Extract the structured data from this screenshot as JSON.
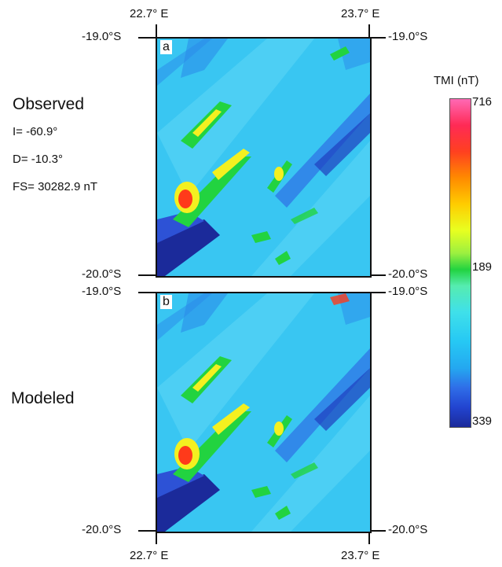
{
  "top_axis": {
    "left_lon": "22.7° E",
    "right_lon": "23.7° E"
  },
  "bottom_axis": {
    "left_lon": "22.7° E",
    "right_lon": "23.7° E"
  },
  "panel_a": {
    "letter": "a",
    "lat_top_left": "-19.0°S",
    "lat_top_right": "-19.0°S",
    "lat_bottom_left": "-20.0°S",
    "lat_bottom_right": "-20.0°S"
  },
  "panel_b": {
    "letter": "b",
    "lat_top_left": "-19.0°S",
    "lat_top_right": "-19.0°S",
    "lat_bottom_left": "-20.0°S",
    "lat_bottom_right": "-20.0°S"
  },
  "observed": {
    "title": "Observed",
    "inclination": "I= -60.9°",
    "declination": "D=  -10.3°",
    "field_strength": "FS= 30282.9 nT"
  },
  "modeled": {
    "title": "Modeled"
  },
  "colorbar": {
    "title": "TMI (nT)",
    "max_label": "716",
    "mid_label": "189",
    "min_label": "339"
  },
  "colors": {
    "background": "#39c6f2",
    "low": "#1b2a9a",
    "high": "#ff69b4",
    "anomaly_red": "#ff3a1a",
    "anomaly_yellow": "#f4f020",
    "anomaly_green": "#22d340"
  }
}
